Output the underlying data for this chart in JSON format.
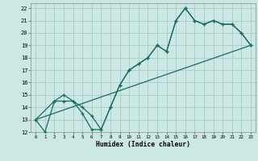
{
  "xlabel": "Humidex (Indice chaleur)",
  "bg_color": "#cce8e4",
  "grid_color": "#aacfcb",
  "line_color": "#1a6b60",
  "xlim": [
    -0.5,
    23.5
  ],
  "ylim": [
    12,
    22.4
  ],
  "xticks": [
    0,
    1,
    2,
    3,
    4,
    5,
    6,
    7,
    8,
    9,
    10,
    11,
    12,
    13,
    14,
    15,
    16,
    17,
    18,
    19,
    20,
    21,
    22,
    23
  ],
  "yticks": [
    12,
    13,
    14,
    15,
    16,
    17,
    18,
    19,
    20,
    21,
    22
  ],
  "curve1_x": [
    0,
    1,
    2,
    3,
    4,
    5,
    6,
    7,
    8,
    9,
    10,
    11,
    12,
    13,
    14,
    15,
    16,
    17,
    18,
    19,
    20,
    21,
    22,
    23
  ],
  "curve1_y": [
    13,
    12,
    14.5,
    14.5,
    14.5,
    13.5,
    12.2,
    12.2,
    14.0,
    15.8,
    17.0,
    17.5,
    18.0,
    19.0,
    18.5,
    21.0,
    22.0,
    21.0,
    20.7,
    21.0,
    20.7,
    20.7,
    20.0,
    19.0
  ],
  "curve2_x": [
    0,
    2,
    3,
    4,
    5,
    6,
    7,
    8,
    9,
    10,
    11,
    12,
    13,
    14,
    15,
    16,
    17,
    18,
    19,
    20,
    21,
    22,
    23
  ],
  "curve2_y": [
    13,
    14.5,
    15.0,
    14.5,
    14.0,
    13.3,
    12.2,
    14.0,
    15.8,
    17.0,
    17.5,
    18.0,
    19.0,
    18.5,
    21.0,
    22.0,
    21.0,
    20.7,
    21.0,
    20.7,
    20.7,
    20.0,
    19.0
  ],
  "curve3_x": [
    0,
    23
  ],
  "curve3_y": [
    13,
    19
  ]
}
